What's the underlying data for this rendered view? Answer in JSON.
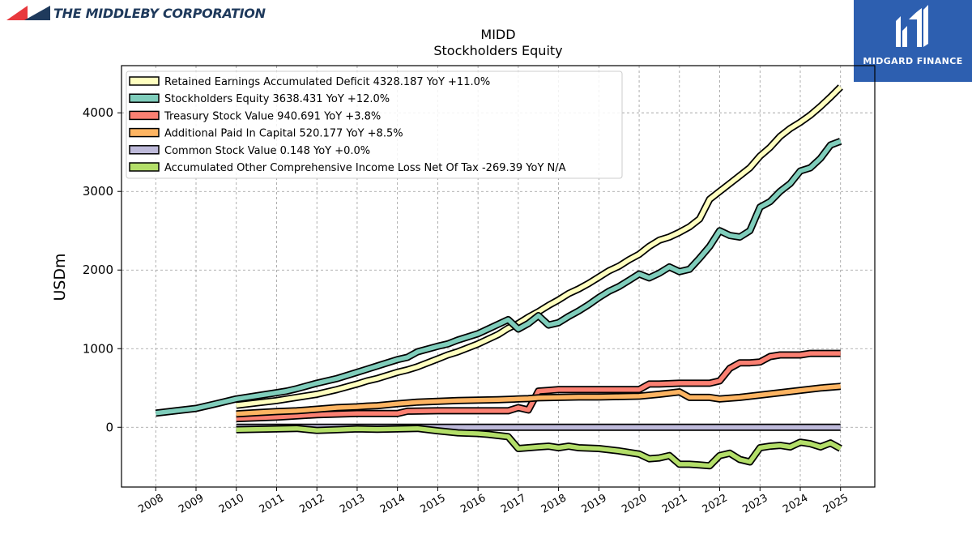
{
  "header": {
    "company_logo_text": "THE MIDDLEBY CORPORATION",
    "badge_text": "MIDGARD FINANCE",
    "badge_color": "#2d5fb0",
    "logo_colors": [
      "#e8383d",
      "#1f3a5c"
    ]
  },
  "chart_data": {
    "type": "line",
    "title": "MIDD",
    "subtitle": "Stockholders  Equity",
    "xlabel": "",
    "ylabel": "USDm",
    "ylim": [
      -760,
      4600
    ],
    "xlim": [
      2007.15,
      2025.85
    ],
    "grid": true,
    "legend_position": "top-left",
    "yticks": [
      0,
      1000,
      2000,
      3000,
      4000
    ],
    "xticks": [
      "2008",
      "2009",
      "2010",
      "2011",
      "2012",
      "2013",
      "2014",
      "2015",
      "2016",
      "2017",
      "2018",
      "2019",
      "2020",
      "2021",
      "2022",
      "2023",
      "2024",
      "2025"
    ],
    "series": [
      {
        "name": "Retained Earnings Accumulated Deficit",
        "legend": "Retained Earnings Accumulated Deficit  4328.187 YoY +11.0%",
        "color": "#ffffbf",
        "x": [
          2010,
          2010.5,
          2011,
          2011.5,
          2012,
          2012.5,
          2013,
          2013.25,
          2013.5,
          2014,
          2014.25,
          2014.5,
          2015,
          2015.25,
          2015.5,
          2016,
          2016.25,
          2016.5,
          2016.75,
          2017,
          2017.25,
          2017.5,
          2017.75,
          2018,
          2018.25,
          2018.5,
          2018.75,
          2019,
          2019.25,
          2019.5,
          2019.75,
          2020,
          2020.25,
          2020.5,
          2020.75,
          2021,
          2021.25,
          2021.5,
          2021.75,
          2022,
          2022.25,
          2022.5,
          2022.75,
          2023,
          2023.25,
          2023.5,
          2023.75,
          2024,
          2024.25,
          2024.5,
          2024.75,
          2025
        ],
        "y": [
          280,
          310,
          340,
          380,
          420,
          480,
          550,
          590,
          620,
          700,
          730,
          770,
          870,
          920,
          960,
          1060,
          1120,
          1180,
          1260,
          1320,
          1400,
          1470,
          1550,
          1620,
          1700,
          1760,
          1830,
          1910,
          1990,
          2050,
          2130,
          2200,
          2300,
          2380,
          2420,
          2480,
          2550,
          2650,
          2900,
          3000,
          3100,
          3200,
          3300,
          3450,
          3560,
          3700,
          3800,
          3880,
          3970,
          4080,
          4200,
          4328
        ]
      },
      {
        "name": "Stockholders Equity",
        "legend": "Stockholders Equity  3638.431 YoY +12.0%",
        "color": "#7fcdbb",
        "x": [
          2008,
          2008.5,
          2009,
          2009.5,
          2010,
          2010.5,
          2011,
          2011.25,
          2011.5,
          2012,
          2012.5,
          2013,
          2013.25,
          2013.5,
          2014,
          2014.25,
          2014.5,
          2015,
          2015.25,
          2015.5,
          2016,
          2016.25,
          2016.5,
          2016.75,
          2017,
          2017.25,
          2017.5,
          2017.75,
          2018,
          2018.25,
          2018.5,
          2018.75,
          2019,
          2019.25,
          2019.5,
          2019.75,
          2020,
          2020.25,
          2020.5,
          2020.75,
          2021,
          2021.25,
          2021.5,
          2021.75,
          2022,
          2022.25,
          2022.5,
          2022.75,
          2023,
          2023.25,
          2023.5,
          2023.75,
          2024,
          2024.25,
          2024.5,
          2024.75,
          2025
        ],
        "y": [
          180,
          210,
          240,
          300,
          360,
          400,
          440,
          460,
          490,
          560,
          620,
          700,
          740,
          780,
          860,
          890,
          960,
          1030,
          1060,
          1110,
          1190,
          1250,
          1310,
          1370,
          1250,
          1320,
          1420,
          1300,
          1330,
          1410,
          1480,
          1560,
          1650,
          1730,
          1790,
          1870,
          1950,
          1900,
          1960,
          2040,
          1980,
          2010,
          2150,
          2300,
          2500,
          2440,
          2420,
          2500,
          2800,
          2870,
          3000,
          3100,
          3260,
          3300,
          3420,
          3590,
          3638
        ]
      },
      {
        "name": "Treasury Stock Value",
        "legend": "Treasury Stock Value  940.691 YoY +3.8%",
        "color": "#fb8072",
        "x": [
          2010,
          2011,
          2012,
          2013,
          2014,
          2014.25,
          2015,
          2016,
          2016.75,
          2017,
          2017.25,
          2017.5,
          2017.75,
          2018,
          2018.5,
          2019,
          2019.5,
          2020,
          2020.25,
          2020.5,
          2021,
          2021.5,
          2021.75,
          2022,
          2022.25,
          2022.5,
          2022.75,
          2023,
          2023.25,
          2023.5,
          2024,
          2024.25,
          2024.5,
          2025
        ],
        "y": [
          110,
          130,
          160,
          175,
          175,
          205,
          210,
          210,
          210,
          250,
          220,
          460,
          470,
          480,
          480,
          480,
          480,
          480,
          550,
          550,
          560,
          560,
          560,
          590,
          750,
          820,
          820,
          830,
          900,
          920,
          920,
          940,
          940,
          940
        ]
      },
      {
        "name": "Additional Paid In Capital",
        "legend": "Additional Paid In Capital  520.177 YoY +8.5%",
        "color": "#fdb462",
        "x": [
          2010,
          2010.5,
          2011,
          2011.5,
          2012,
          2012.5,
          2013,
          2013.25,
          2013.5,
          2014,
          2014.25,
          2014.5,
          2015,
          2015.5,
          2016,
          2016.5,
          2017,
          2017.25,
          2017.5,
          2018,
          2018.5,
          2019,
          2019.5,
          2020,
          2020.5,
          2021,
          2021.25,
          2021.5,
          2021.75,
          2022,
          2022.5,
          2023,
          2023.5,
          2024,
          2024.5,
          2025
        ],
        "y": [
          170,
          185,
          200,
          210,
          230,
          250,
          260,
          270,
          275,
          300,
          310,
          320,
          330,
          340,
          345,
          350,
          360,
          365,
          375,
          380,
          385,
          385,
          390,
          395,
          420,
          450,
          380,
          380,
          380,
          360,
          380,
          410,
          440,
          470,
          500,
          520
        ]
      },
      {
        "name": "Common Stock Value",
        "legend": "Common Stock Value  0.148 YoY +0.0%",
        "color": "#bebada",
        "x": [
          2010,
          2025
        ],
        "y": [
          0,
          0
        ]
      },
      {
        "name": "Accumulated Other Comprehensive Income Loss Net Of Tax",
        "legend": "Accumulated Other Comprehensive Income Loss Net Of Tax  -269.39 YoY N/A",
        "color": "#b3de69",
        "x": [
          2010,
          2010.5,
          2011,
          2011.5,
          2012,
          2012.5,
          2013,
          2013.5,
          2014,
          2014.5,
          2015,
          2015.5,
          2016,
          2016.25,
          2016.75,
          2017,
          2017.5,
          2017.75,
          2018,
          2018.25,
          2018.5,
          2019,
          2019.5,
          2020,
          2020.25,
          2020.5,
          2020.75,
          2021,
          2021.25,
          2021.5,
          2021.75,
          2022,
          2022.25,
          2022.5,
          2022.75,
          2023,
          2023.25,
          2023.5,
          2023.75,
          2024,
          2024.25,
          2024.5,
          2024.75,
          2025
        ],
        "y": [
          -30,
          -25,
          -20,
          -15,
          -40,
          -30,
          -20,
          -25,
          -20,
          -15,
          -45,
          -70,
          -80,
          -90,
          -120,
          -270,
          -250,
          -240,
          -260,
          -240,
          -260,
          -270,
          -300,
          -340,
          -400,
          -390,
          -360,
          -470,
          -470,
          -480,
          -490,
          -360,
          -330,
          -410,
          -440,
          -260,
          -240,
          -230,
          -250,
          -190,
          -210,
          -250,
          -200,
          -269
        ]
      }
    ]
  }
}
